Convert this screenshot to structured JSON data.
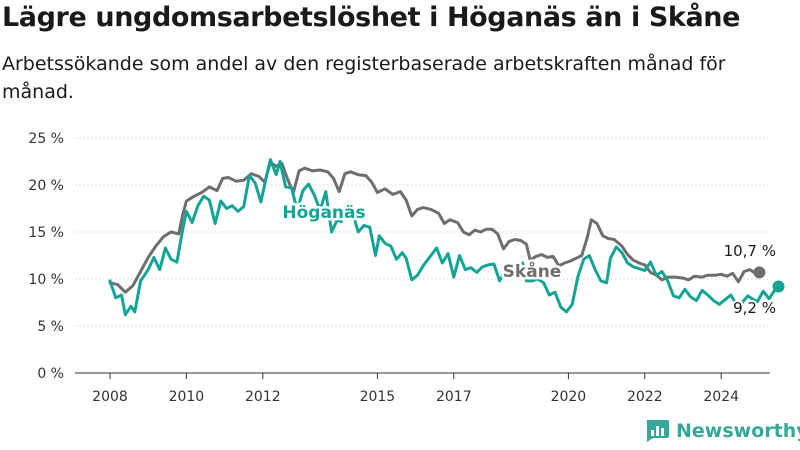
{
  "header": {
    "title": "Lägre ungdomsarbetslöshet i Höganäs än i Skåne",
    "subtitle": "Arbetssökande som andel av den registerbaserade arbetskraften månad för månad."
  },
  "brand": {
    "name": "Newsworthy",
    "icon": "bar-chart-logo-icon",
    "color": "#35a89a"
  },
  "chart_data": {
    "type": "line",
    "title": "Lägre ungdomsarbetslöshet i Höganäs än i Skåne",
    "subtitle": "Arbetssökande som andel av den registerbaserade arbetskraften månad för månad.",
    "xlabel": "",
    "ylabel": "",
    "xlim": [
      2008.0,
      2025.5
    ],
    "ylim": [
      0,
      25
    ],
    "y_ticks": [
      0,
      5,
      10,
      15,
      20,
      25
    ],
    "y_tick_labels": [
      "0 %",
      "5 %",
      "10 %",
      "15 %",
      "20 %",
      "25 %"
    ],
    "x_ticks": [
      2008,
      2010,
      2012,
      2015,
      2017,
      2020,
      2022,
      2024
    ],
    "x_tick_labels": [
      "2008",
      "2010",
      "2012",
      "2015",
      "2017",
      "2020",
      "2022",
      "2024"
    ],
    "grid": "horizontal",
    "legend": "inline labels",
    "series": [
      {
        "name": "Skåne",
        "color": "#6e6e6e",
        "end_label": "10,7 %",
        "points": [
          [
            2008.0,
            9.6
          ],
          [
            2008.2,
            9.4
          ],
          [
            2008.4,
            8.6
          ],
          [
            2008.6,
            9.3
          ],
          [
            2008.8,
            10.8
          ],
          [
            2009.0,
            12.3
          ],
          [
            2009.2,
            13.5
          ],
          [
            2009.4,
            14.5
          ],
          [
            2009.6,
            15.0
          ],
          [
            2009.8,
            14.8
          ],
          [
            2009.9,
            16.8
          ],
          [
            2010.0,
            18.3
          ],
          [
            2010.2,
            18.8
          ],
          [
            2010.4,
            19.2
          ],
          [
            2010.6,
            19.8
          ],
          [
            2010.8,
            19.4
          ],
          [
            2010.95,
            20.7
          ],
          [
            2011.1,
            20.8
          ],
          [
            2011.3,
            20.4
          ],
          [
            2011.5,
            20.5
          ],
          [
            2011.7,
            21.2
          ],
          [
            2011.9,
            20.9
          ],
          [
            2012.05,
            20.3
          ],
          [
            2012.2,
            22.4
          ],
          [
            2012.35,
            22.0
          ],
          [
            2012.5,
            22.3
          ],
          [
            2012.65,
            20.6
          ],
          [
            2012.8,
            19.2
          ],
          [
            2012.95,
            21.5
          ],
          [
            2013.1,
            21.8
          ],
          [
            2013.3,
            21.5
          ],
          [
            2013.5,
            21.6
          ],
          [
            2013.7,
            21.4
          ],
          [
            2013.85,
            20.7
          ],
          [
            2014.0,
            19.3
          ],
          [
            2014.15,
            21.2
          ],
          [
            2014.3,
            21.4
          ],
          [
            2014.5,
            21.1
          ],
          [
            2014.7,
            21.0
          ],
          [
            2014.85,
            20.3
          ],
          [
            2015.0,
            19.2
          ],
          [
            2015.2,
            19.6
          ],
          [
            2015.4,
            19.0
          ],
          [
            2015.6,
            19.3
          ],
          [
            2015.75,
            18.4
          ],
          [
            2015.9,
            16.7
          ],
          [
            2016.05,
            17.4
          ],
          [
            2016.2,
            17.6
          ],
          [
            2016.4,
            17.4
          ],
          [
            2016.6,
            17.0
          ],
          [
            2016.75,
            15.9
          ],
          [
            2016.9,
            16.3
          ],
          [
            2017.1,
            16.0
          ],
          [
            2017.25,
            15.0
          ],
          [
            2017.4,
            14.7
          ],
          [
            2017.55,
            15.2
          ],
          [
            2017.7,
            15.0
          ],
          [
            2017.85,
            15.3
          ],
          [
            2018.0,
            15.3
          ],
          [
            2018.15,
            14.8
          ],
          [
            2018.3,
            13.2
          ],
          [
            2018.45,
            14.0
          ],
          [
            2018.6,
            14.2
          ],
          [
            2018.75,
            14.1
          ],
          [
            2018.9,
            13.7
          ],
          [
            2019.0,
            12.0
          ],
          [
            2019.15,
            12.4
          ],
          [
            2019.3,
            12.6
          ],
          [
            2019.45,
            12.3
          ],
          [
            2019.6,
            12.4
          ],
          [
            2019.75,
            11.4
          ],
          [
            2019.9,
            11.7
          ],
          [
            2020.05,
            11.9
          ],
          [
            2020.2,
            12.2
          ],
          [
            2020.35,
            12.5
          ],
          [
            2020.5,
            14.5
          ],
          [
            2020.6,
            16.3
          ],
          [
            2020.75,
            15.9
          ],
          [
            2020.9,
            14.6
          ],
          [
            2021.05,
            14.3
          ],
          [
            2021.2,
            14.2
          ],
          [
            2021.4,
            13.5
          ],
          [
            2021.55,
            12.6
          ],
          [
            2021.7,
            12.0
          ],
          [
            2021.85,
            11.7
          ],
          [
            2022.0,
            11.5
          ],
          [
            2022.15,
            10.7
          ],
          [
            2022.3,
            10.4
          ],
          [
            2022.45,
            9.9
          ],
          [
            2022.6,
            10.2
          ],
          [
            2022.8,
            10.2
          ],
          [
            2023.0,
            10.1
          ],
          [
            2023.15,
            9.9
          ],
          [
            2023.3,
            10.3
          ],
          [
            2023.5,
            10.2
          ],
          [
            2023.65,
            10.4
          ],
          [
            2023.85,
            10.4
          ],
          [
            2024.0,
            10.5
          ],
          [
            2024.15,
            10.3
          ],
          [
            2024.3,
            10.6
          ],
          [
            2024.45,
            9.7
          ],
          [
            2024.6,
            10.8
          ],
          [
            2024.75,
            11.0
          ],
          [
            2024.9,
            10.6
          ],
          [
            2025.0,
            10.7
          ]
        ]
      },
      {
        "name": "Höganäs",
        "color": "#14a496",
        "end_label": "9,2 %",
        "points": [
          [
            2008.0,
            9.8
          ],
          [
            2008.15,
            8.0
          ],
          [
            2008.3,
            8.3
          ],
          [
            2008.4,
            6.2
          ],
          [
            2008.55,
            7.1
          ],
          [
            2008.65,
            6.5
          ],
          [
            2008.8,
            9.8
          ],
          [
            2009.0,
            11.0
          ],
          [
            2009.15,
            12.3
          ],
          [
            2009.3,
            11.0
          ],
          [
            2009.45,
            13.3
          ],
          [
            2009.6,
            12.1
          ],
          [
            2009.75,
            11.8
          ],
          [
            2009.9,
            15.2
          ],
          [
            2010.0,
            17.2
          ],
          [
            2010.15,
            16.0
          ],
          [
            2010.3,
            17.8
          ],
          [
            2010.45,
            18.8
          ],
          [
            2010.6,
            18.4
          ],
          [
            2010.75,
            15.9
          ],
          [
            2010.9,
            18.3
          ],
          [
            2011.05,
            17.5
          ],
          [
            2011.2,
            17.8
          ],
          [
            2011.35,
            17.2
          ],
          [
            2011.5,
            17.7
          ],
          [
            2011.65,
            21.0
          ],
          [
            2011.8,
            20.2
          ],
          [
            2011.95,
            18.2
          ],
          [
            2012.1,
            21.0
          ],
          [
            2012.2,
            22.7
          ],
          [
            2012.35,
            21.1
          ],
          [
            2012.45,
            22.5
          ],
          [
            2012.6,
            19.8
          ],
          [
            2012.75,
            19.7
          ],
          [
            2012.9,
            17.3
          ],
          [
            2013.05,
            19.4
          ],
          [
            2013.2,
            20.1
          ],
          [
            2013.35,
            18.9
          ],
          [
            2013.5,
            17.3
          ],
          [
            2013.65,
            19.3
          ],
          [
            2013.8,
            15.0
          ],
          [
            2013.95,
            16.3
          ],
          [
            2014.05,
            16.1
          ],
          [
            2014.2,
            17.5
          ],
          [
            2014.35,
            17.0
          ],
          [
            2014.5,
            15.0
          ],
          [
            2014.65,
            15.7
          ],
          [
            2014.8,
            15.5
          ],
          [
            2014.95,
            12.5
          ],
          [
            2015.05,
            14.6
          ],
          [
            2015.2,
            13.8
          ],
          [
            2015.35,
            13.5
          ],
          [
            2015.5,
            12.1
          ],
          [
            2015.65,
            12.8
          ],
          [
            2015.75,
            12.2
          ],
          [
            2015.9,
            9.9
          ],
          [
            2016.05,
            10.4
          ],
          [
            2016.2,
            11.4
          ],
          [
            2016.4,
            12.5
          ],
          [
            2016.55,
            13.3
          ],
          [
            2016.7,
            11.7
          ],
          [
            2016.85,
            12.7
          ],
          [
            2017.0,
            10.2
          ],
          [
            2017.15,
            12.5
          ],
          [
            2017.3,
            11.0
          ],
          [
            2017.45,
            11.2
          ],
          [
            2017.6,
            10.7
          ],
          [
            2017.75,
            11.3
          ],
          [
            2017.9,
            11.5
          ],
          [
            2018.05,
            11.6
          ],
          [
            2018.2,
            9.8
          ],
          [
            2018.35,
            10.9
          ],
          [
            2018.5,
            11.4
          ],
          [
            2018.65,
            10.9
          ],
          [
            2018.8,
            11.7
          ],
          [
            2018.9,
            9.8
          ],
          [
            2019.05,
            9.8
          ],
          [
            2019.2,
            10.0
          ],
          [
            2019.35,
            9.6
          ],
          [
            2019.5,
            8.3
          ],
          [
            2019.65,
            8.6
          ],
          [
            2019.8,
            7.0
          ],
          [
            2019.95,
            6.5
          ],
          [
            2020.1,
            7.3
          ],
          [
            2020.25,
            10.3
          ],
          [
            2020.4,
            12.1
          ],
          [
            2020.55,
            12.5
          ],
          [
            2020.7,
            11.0
          ],
          [
            2020.85,
            9.8
          ],
          [
            2021.0,
            9.6
          ],
          [
            2021.1,
            12.2
          ],
          [
            2021.25,
            13.4
          ],
          [
            2021.4,
            12.8
          ],
          [
            2021.55,
            11.7
          ],
          [
            2021.7,
            11.3
          ],
          [
            2021.85,
            11.1
          ],
          [
            2022.0,
            10.9
          ],
          [
            2022.15,
            11.8
          ],
          [
            2022.3,
            10.4
          ],
          [
            2022.45,
            10.8
          ],
          [
            2022.6,
            9.8
          ],
          [
            2022.75,
            8.2
          ],
          [
            2022.9,
            8.0
          ],
          [
            2023.05,
            8.9
          ],
          [
            2023.2,
            8.1
          ],
          [
            2023.35,
            7.7
          ],
          [
            2023.5,
            8.8
          ],
          [
            2023.65,
            8.3
          ],
          [
            2023.8,
            7.7
          ],
          [
            2023.95,
            7.3
          ],
          [
            2024.1,
            7.8
          ],
          [
            2024.25,
            8.3
          ],
          [
            2024.4,
            7.3
          ],
          [
            2024.55,
            7.5
          ],
          [
            2024.7,
            8.2
          ],
          [
            2024.85,
            7.8
          ],
          [
            2024.95,
            7.6
          ],
          [
            2025.1,
            8.7
          ],
          [
            2025.25,
            7.9
          ],
          [
            2025.4,
            8.8
          ],
          [
            2025.5,
            9.2
          ]
        ]
      }
    ]
  }
}
